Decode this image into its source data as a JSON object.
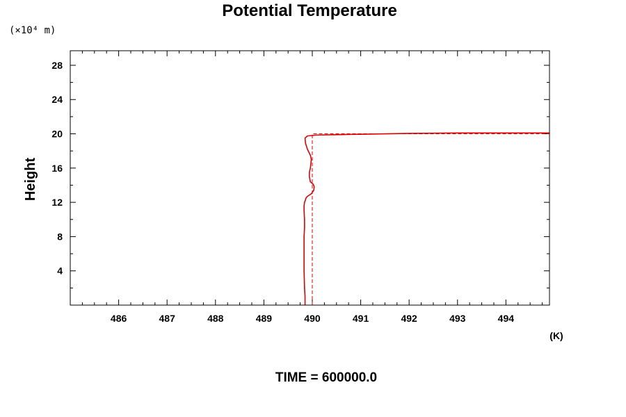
{
  "chart_data": {
    "type": "line",
    "title": "Potential Temperature",
    "xlabel": "",
    "ylabel": "Height",
    "y_unit_label": "(×10⁴ m)",
    "x_unit_label": "(K)",
    "footer": "TIME = 600000.0",
    "xlim": [
      485.0,
      494.9
    ],
    "ylim": [
      0.0,
      29.7
    ],
    "x_ticks": [
      "486",
      "487",
      "488",
      "489",
      "490",
      "491",
      "492",
      "493",
      "494"
    ],
    "y_ticks": [
      "4",
      "8",
      "12",
      "16",
      "20",
      "24",
      "28"
    ],
    "grid": false,
    "colors": {
      "series": "#e00000",
      "axes": "#000000"
    },
    "series": [
      {
        "style": "solid",
        "x": [
          489.85,
          489.85,
          489.84,
          489.83,
          489.83,
          489.83,
          489.84,
          489.84,
          489.83,
          489.83,
          489.84,
          489.86,
          489.87,
          489.9,
          489.98,
          490.03,
          490.04,
          490.02,
          489.96,
          489.94,
          489.94,
          489.96,
          489.97,
          489.98,
          489.96,
          489.9,
          489.86,
          489.85,
          489.9,
          490.08,
          490.5,
          491.0,
          492.0,
          493.0,
          494.0,
          494.9
        ],
        "y": [
          0.0,
          1.0,
          2.0,
          4.0,
          6.0,
          8.0,
          9.0,
          10.0,
          11.0,
          11.6,
          12.0,
          12.3,
          12.5,
          12.7,
          13.0,
          13.4,
          13.8,
          14.1,
          14.4,
          15.0,
          15.5,
          16.0,
          16.5,
          17.0,
          17.5,
          18.2,
          18.9,
          19.5,
          19.75,
          19.85,
          19.9,
          19.95,
          20.05,
          20.1,
          20.1,
          20.1
        ]
      },
      {
        "style": "dashed",
        "x": [
          490.0,
          490.0,
          490.0,
          494.9
        ],
        "y": [
          0.0,
          10.0,
          20.0,
          20.0
        ]
      }
    ]
  }
}
